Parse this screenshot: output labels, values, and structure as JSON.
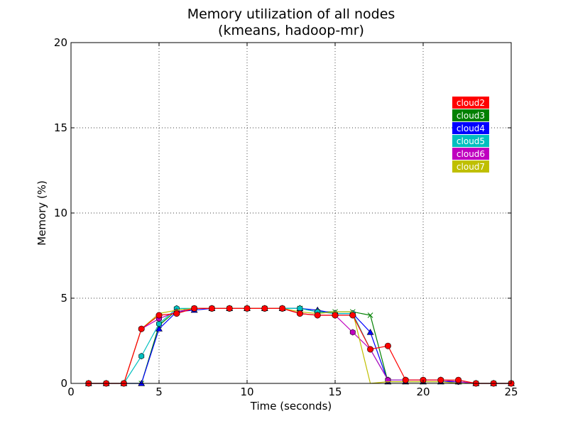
{
  "chart_data": {
    "type": "line",
    "title": "Memory utilization of all nodes",
    "subtitle": "(kmeans, hadoop-mr)",
    "xlabel": "Time (seconds)",
    "ylabel": "Memory (%)",
    "xlim": [
      0,
      25
    ],
    "ylim": [
      0,
      20
    ],
    "xticks": [
      0,
      5,
      10,
      15,
      20,
      25
    ],
    "yticks": [
      0,
      5,
      10,
      15,
      20
    ],
    "xtick_labels": [
      "0",
      "5",
      "10",
      "15",
      "20",
      "25"
    ],
    "ytick_labels": [
      "0",
      "5",
      "10",
      "15",
      "20"
    ],
    "grid": true,
    "legend_position": "top-right",
    "x": [
      1,
      2,
      3,
      4,
      5,
      6,
      7,
      8,
      9,
      10,
      11,
      12,
      13,
      14,
      15,
      16,
      17,
      18,
      19,
      20,
      21,
      22,
      23,
      24,
      25
    ],
    "series": [
      {
        "name": "cloud3",
        "color": "#008000",
        "marker": "x",
        "values": [
          0,
          0,
          0,
          0,
          3.4,
          4.3,
          4.4,
          4.4,
          4.4,
          4.4,
          4.4,
          4.4,
          4.4,
          4.2,
          4.2,
          4.2,
          4.0,
          0.1,
          0.1,
          0.1,
          0.1,
          0.1,
          0,
          0,
          0
        ]
      },
      {
        "name": "cloud4",
        "color": "#0000ff",
        "marker": "triangle",
        "values": [
          0,
          0,
          0,
          0,
          3.2,
          4.2,
          4.3,
          4.4,
          4.4,
          4.4,
          4.4,
          4.4,
          4.4,
          4.3,
          4.1,
          4.1,
          3.0,
          0.1,
          0.1,
          0.1,
          0.1,
          0.1,
          0,
          0,
          0
        ]
      },
      {
        "name": "cloud5",
        "color": "#00bfbf",
        "marker": "hexagon",
        "values": [
          0,
          0,
          0,
          1.6,
          3.5,
          4.4,
          4.4,
          4.4,
          4.4,
          4.4,
          4.4,
          4.4,
          4.4,
          4.2,
          4.1,
          4.1,
          2.0,
          0.2,
          0.2,
          0.2,
          0.2,
          0.1,
          0,
          0,
          0
        ]
      },
      {
        "name": "cloud6",
        "color": "#bf00bf",
        "marker": "hexagon",
        "values": [
          0,
          0,
          0,
          3.2,
          3.8,
          4.2,
          4.4,
          4.4,
          4.4,
          4.4,
          4.4,
          4.4,
          4.1,
          4.0,
          4.0,
          3.0,
          2.0,
          0.2,
          0.2,
          0.2,
          0.2,
          0.1,
          0,
          0,
          0
        ]
      },
      {
        "name": "cloud7",
        "color": "#bfbf00",
        "marker": "none",
        "values": [
          0,
          0,
          0,
          3.2,
          4.1,
          4.3,
          4.4,
          4.4,
          4.4,
          4.4,
          4.4,
          4.4,
          4.2,
          4.1,
          4.2,
          4.2,
          0,
          0.1,
          0.1,
          0.1,
          0.1,
          0,
          0,
          0,
          0
        ]
      },
      {
        "name": "cloud2",
        "color": "#ff0000",
        "marker": "circle",
        "values": [
          0,
          0,
          0,
          3.2,
          4.0,
          4.1,
          4.4,
          4.4,
          4.4,
          4.4,
          4.4,
          4.4,
          4.1,
          4.0,
          4.0,
          4.0,
          2.0,
          2.2,
          0.2,
          0.2,
          0.2,
          0.2,
          0,
          0,
          0
        ]
      }
    ],
    "legend_order": [
      "cloud2",
      "cloud3",
      "cloud4",
      "cloud5",
      "cloud6",
      "cloud7"
    ]
  }
}
